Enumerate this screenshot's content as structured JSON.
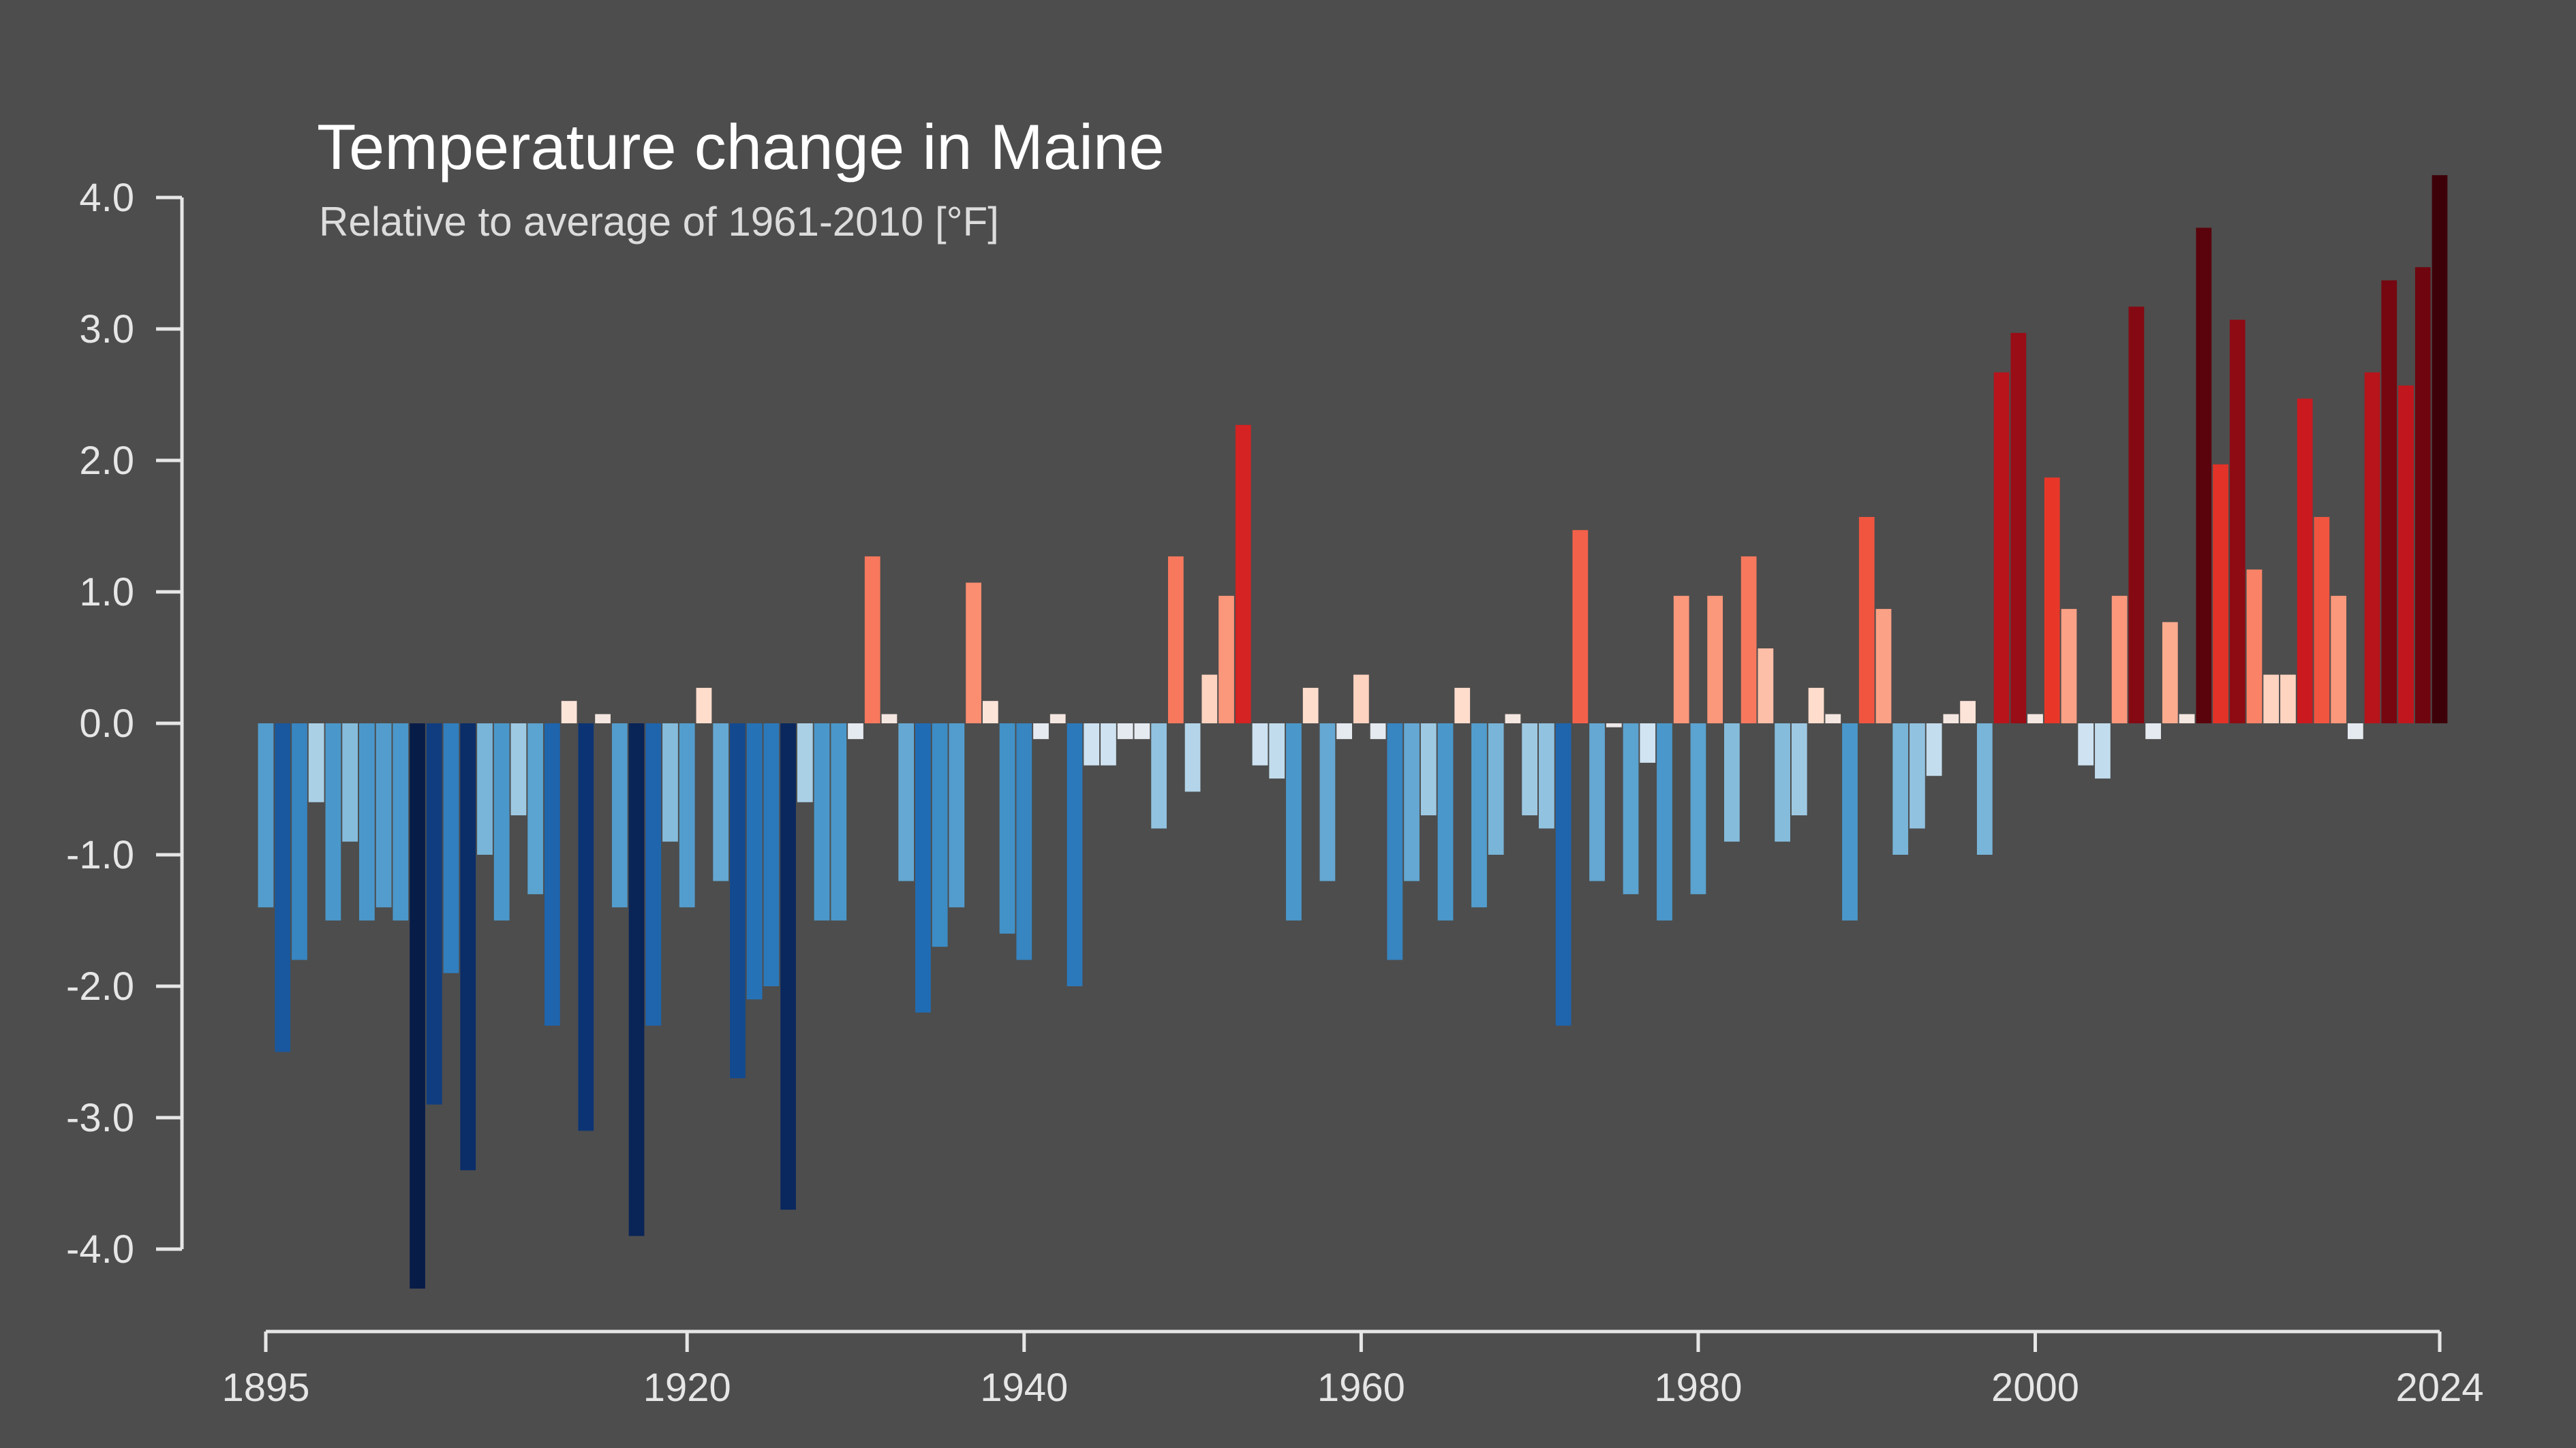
{
  "chart_data": {
    "type": "bar",
    "title": "Temperature change in Maine",
    "subtitle": "Relative to average of 1961-2010  [°F]",
    "xlabel": "",
    "ylabel": "",
    "x": [
      1895,
      1896,
      1897,
      1898,
      1899,
      1900,
      1901,
      1902,
      1903,
      1904,
      1905,
      1906,
      1907,
      1908,
      1909,
      1910,
      1911,
      1912,
      1913,
      1914,
      1915,
      1916,
      1917,
      1918,
      1919,
      1920,
      1921,
      1922,
      1923,
      1924,
      1925,
      1926,
      1927,
      1928,
      1929,
      1930,
      1931,
      1932,
      1933,
      1934,
      1935,
      1936,
      1937,
      1938,
      1939,
      1940,
      1941,
      1942,
      1943,
      1944,
      1945,
      1946,
      1947,
      1948,
      1949,
      1950,
      1951,
      1952,
      1953,
      1954,
      1955,
      1956,
      1957,
      1958,
      1959,
      1960,
      1961,
      1962,
      1963,
      1964,
      1965,
      1966,
      1967,
      1968,
      1969,
      1970,
      1971,
      1972,
      1973,
      1974,
      1975,
      1976,
      1977,
      1978,
      1979,
      1980,
      1981,
      1982,
      1983,
      1984,
      1985,
      1986,
      1987,
      1988,
      1989,
      1990,
      1991,
      1992,
      1993,
      1994,
      1995,
      1996,
      1997,
      1998,
      1999,
      2000,
      2001,
      2002,
      2003,
      2004,
      2005,
      2006,
      2007,
      2008,
      2009,
      2010,
      2011,
      2012,
      2013,
      2014,
      2015,
      2016,
      2017,
      2018,
      2019,
      2020,
      2021,
      2022,
      2023,
      2024
    ],
    "values": [
      -1.4,
      -2.5,
      -1.8,
      -0.6,
      -1.5,
      -0.9,
      -1.5,
      -1.4,
      -1.5,
      -4.3,
      -2.9,
      -1.9,
      -3.4,
      -1.0,
      -1.5,
      -0.7,
      -1.3,
      -2.3,
      0.17,
      -3.1,
      0.07,
      -1.4,
      -3.9,
      -2.3,
      -0.9,
      -1.4,
      0.27,
      -1.2,
      -2.7,
      -2.1,
      -2.0,
      -3.7,
      -0.6,
      -1.5,
      -1.5,
      -0.12,
      1.27,
      0.07,
      -1.2,
      -2.2,
      -1.7,
      -1.4,
      1.07,
      0.17,
      -1.6,
      -1.8,
      -0.12,
      0.07,
      -2.0,
      -0.32,
      -0.32,
      -0.12,
      -0.12,
      -0.8,
      1.27,
      -0.52,
      0.37,
      0.97,
      2.27,
      -0.32,
      -0.42,
      -1.5,
      0.27,
      -1.2,
      -0.12,
      0.37,
      -0.12,
      -1.8,
      -1.2,
      -0.7,
      -1.5,
      0.27,
      -1.4,
      -1.0,
      0.07,
      -0.7,
      -0.8,
      -2.3,
      1.47,
      -1.2,
      -0.03,
      -1.3,
      -0.3,
      -1.5,
      0.97,
      -1.3,
      0.97,
      -0.9,
      1.27,
      0.57,
      -0.9,
      -0.7,
      0.27,
      0.07,
      -1.5,
      1.57,
      0.87,
      -1.0,
      -0.8,
      -0.4,
      0.07,
      0.17,
      -1.0,
      2.67,
      2.97,
      0.07,
      1.87,
      0.87,
      -0.32,
      -0.42,
      0.97,
      3.17,
      -0.12,
      0.77,
      0.07,
      3.77,
      1.97,
      3.07,
      1.17,
      0.37,
      0.37,
      2.47,
      1.57,
      0.97,
      -0.12,
      2.67,
      3.37,
      2.57,
      3.47,
      4.17
    ],
    "ylim": [
      -4.4,
      4.3
    ],
    "yticks": [
      "-4.0",
      "-3.0",
      "-2.0",
      "-1.0",
      "0.0",
      "1.0",
      "2.0",
      "3.0",
      "4.0"
    ],
    "ytick_values": [
      -4,
      -3,
      -2,
      -1,
      0,
      1,
      2,
      3,
      4
    ],
    "xticks": [
      "1895",
      "1920",
      "1940",
      "1960",
      "1980",
      "2000",
      "2024"
    ],
    "xtick_values": [
      1895,
      1920,
      1940,
      1960,
      1980,
      2000,
      2024
    ],
    "grid": false,
    "legend": "none",
    "colormap": "blue-to-red diverging (cold blue, warm red)"
  }
}
